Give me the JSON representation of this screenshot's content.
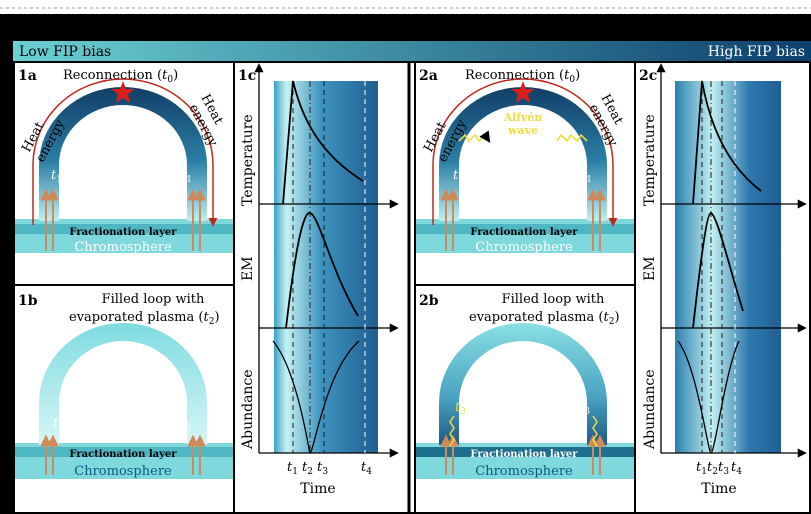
{
  "banner": {
    "left": "Low FIP bias",
    "right": "High FIP bias"
  },
  "panels": {
    "p1a": {
      "tag": "1a",
      "title": "Reconnection",
      "t": "t",
      "sub": "0",
      "heat": "Heat",
      "energy": "energy",
      "t1": "t",
      "t1sub": "1",
      "layer": "Fractionation layer",
      "chromo": "Chromosphere"
    },
    "p1b": {
      "tag": "1b",
      "line1": "Filled loop with",
      "line2": "evaporated plasma",
      "t": "t",
      "sub": "2",
      "t3": "t",
      "t3sub": "3",
      "layer": "Fractionation layer",
      "chromo": "Chromosphere"
    },
    "p1c": {
      "tag": "1c",
      "ylabels": [
        "Temperature",
        "EM",
        "Abundance"
      ],
      "ticks": [
        {
          "t": "t",
          "s": "1"
        },
        {
          "t": "t",
          "s": "2"
        },
        {
          "t": "t",
          "s": "3"
        },
        {
          "t": "t",
          "s": "4"
        }
      ],
      "xlabel": "Time"
    },
    "p2a": {
      "tag": "2a",
      "title": "Reconnection",
      "t": "t",
      "sub": "0",
      "heat": "Heat",
      "energy": "energy",
      "wave1": "Alfvén",
      "wave2": "wave",
      "t1": "t",
      "t1sub": "1",
      "layer": "Fractionation layer",
      "chromo": "Chromosphere"
    },
    "p2b": {
      "tag": "2b",
      "line1": "Filled loop with",
      "line2": "evaporated plasma",
      "t": "t",
      "sub": "2",
      "t3": "t",
      "t3sub": "3",
      "layer": "Fractionation layer",
      "chromo": "Chromosphere"
    },
    "p2c": {
      "tag": "2c",
      "ylabels": [
        "Temperature",
        "EM",
        "Abundance"
      ],
      "ticks": [
        {
          "t": "t",
          "s": "1"
        },
        {
          "t": "t",
          "s": "2"
        },
        {
          "t": "t",
          "s": "3"
        },
        {
          "t": "t",
          "s": "4"
        }
      ],
      "xlabel": "Time"
    }
  },
  "colors": {
    "loop_dark": "#1c5a86",
    "loop_light": "#bfeff0",
    "chromo": "#7fd9dc",
    "layer": "#4fb6c4",
    "arrow": "#cf8a5a",
    "star": "#d8201e",
    "wave": "#f0dc3c",
    "banner_dark": "#0c3f6c",
    "banner_light": "#6bd1d3"
  }
}
